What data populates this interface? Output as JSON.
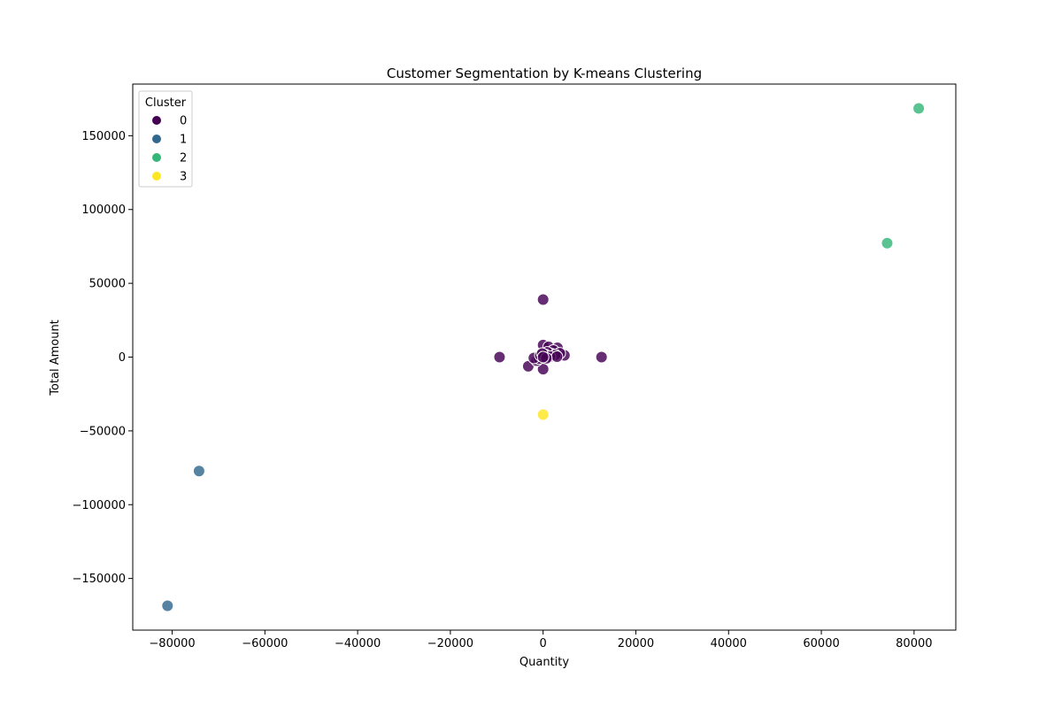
{
  "chart_data": {
    "type": "scatter",
    "title": "Customer Segmentation by K-means Clustering",
    "xlabel": "Quantity",
    "ylabel": "Total Amount",
    "xlim": [
      -88500,
      89000
    ],
    "ylim": [
      -185000,
      185000
    ],
    "xticks": [
      -80000,
      -60000,
      -40000,
      -20000,
      0,
      20000,
      40000,
      60000,
      80000
    ],
    "xtick_labels": [
      "−80000",
      "−60000",
      "−40000",
      "−20000",
      "0",
      "20000",
      "40000",
      "60000",
      "80000"
    ],
    "yticks": [
      -150000,
      -100000,
      -50000,
      0,
      50000,
      100000,
      150000
    ],
    "ytick_labels": [
      "−150000",
      "−100000",
      "−50000",
      "0",
      "50000",
      "100000",
      "150000"
    ],
    "grid": false,
    "legend": {
      "title": "Cluster",
      "placement": "top-left",
      "entries": [
        {
          "label": "0",
          "color": "#440154"
        },
        {
          "label": "1",
          "color": "#31688e"
        },
        {
          "label": "2",
          "color": "#35b779"
        },
        {
          "label": "3",
          "color": "#fde725"
        }
      ]
    },
    "series": [
      {
        "name": "0",
        "color": "#440154",
        "points": [
          {
            "x": 0,
            "y": 39000
          },
          {
            "x": -9400,
            "y": 0
          },
          {
            "x": 12600,
            "y": 0
          },
          {
            "x": -3200,
            "y": -6200
          },
          {
            "x": 0,
            "y": -8200
          },
          {
            "x": 0,
            "y": 8200
          },
          {
            "x": 1200,
            "y": 7000
          },
          {
            "x": 3100,
            "y": 6300
          },
          {
            "x": 2200,
            "y": 4500
          },
          {
            "x": 4600,
            "y": 1200
          },
          {
            "x": 3600,
            "y": 2600
          },
          {
            "x": 1800,
            "y": 2000
          },
          {
            "x": -1400,
            "y": -2400
          },
          {
            "x": -900,
            "y": -1000
          },
          {
            "x": -2000,
            "y": -600
          },
          {
            "x": -600,
            "y": 1200
          },
          {
            "x": 900,
            "y": 3200
          },
          {
            "x": 2600,
            "y": 1400
          },
          {
            "x": 400,
            "y": 1600
          },
          {
            "x": 1500,
            "y": 400
          },
          {
            "x": 3000,
            "y": 300
          },
          {
            "x": -200,
            "y": 2400
          },
          {
            "x": 700,
            "y": -800
          },
          {
            "x": 0,
            "y": 0
          }
        ]
      },
      {
        "name": "1",
        "color": "#31688e",
        "points": [
          {
            "x": -74200,
            "y": -77200
          },
          {
            "x": -81000,
            "y": -168500
          }
        ]
      },
      {
        "name": "2",
        "color": "#35b779",
        "points": [
          {
            "x": 81000,
            "y": 168500
          },
          {
            "x": 74200,
            "y": 77200
          }
        ]
      },
      {
        "name": "3",
        "color": "#fde725",
        "points": [
          {
            "x": 0,
            "y": -39000
          }
        ]
      }
    ]
  }
}
